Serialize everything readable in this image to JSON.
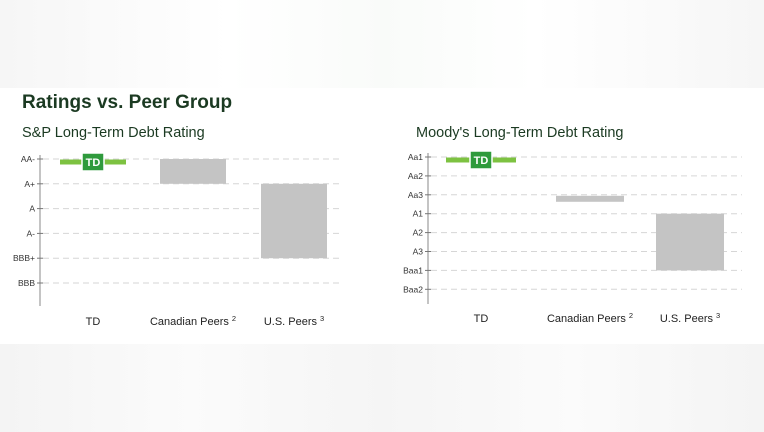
{
  "title": "Ratings vs. Peer Group",
  "logo_text": "TD",
  "colors": {
    "td_green": "#7dc241",
    "logo_green": "#2f9a3c",
    "range_gray": "#c4c4c4",
    "title_green": "#1b3a22"
  },
  "chart_data": [
    {
      "type": "bar",
      "title": "S&P Long-Term Debt Rating",
      "y_ticks": [
        "AA-",
        "A+",
        "A",
        "A-",
        "BBB+",
        "BBB"
      ],
      "categories": [
        {
          "label": "TD",
          "sup": ""
        },
        {
          "label": "Canadian Peers",
          "sup": "2"
        },
        {
          "label": "U.S. Peers",
          "sup": "3"
        }
      ],
      "series": [
        {
          "category": "TD",
          "kind": "marker",
          "value": "AA-"
        },
        {
          "category": "Canadian Peers",
          "kind": "range",
          "high": "AA-",
          "low": "A+"
        },
        {
          "category": "U.S. Peers",
          "kind": "range",
          "high": "A+",
          "low": "BBB+"
        }
      ],
      "grid": true
    },
    {
      "type": "bar",
      "title": "Moody's Long-Term Debt Rating",
      "y_ticks": [
        "Aa1",
        "Aa2",
        "Aa3",
        "A1",
        "A2",
        "A3",
        "Baa1",
        "Baa2"
      ],
      "categories": [
        {
          "label": "TD",
          "sup": ""
        },
        {
          "label": "Canadian Peers",
          "sup": "2"
        },
        {
          "label": "U.S. Peers",
          "sup": "3"
        }
      ],
      "series": [
        {
          "category": "TD",
          "kind": "marker",
          "value": "Aa1"
        },
        {
          "category": "Canadian Peers",
          "kind": "range",
          "high": "Aa3",
          "low": "Aa3"
        },
        {
          "category": "U.S. Peers",
          "kind": "range",
          "high": "A1",
          "low": "Baa1"
        }
      ],
      "grid": true
    }
  ]
}
